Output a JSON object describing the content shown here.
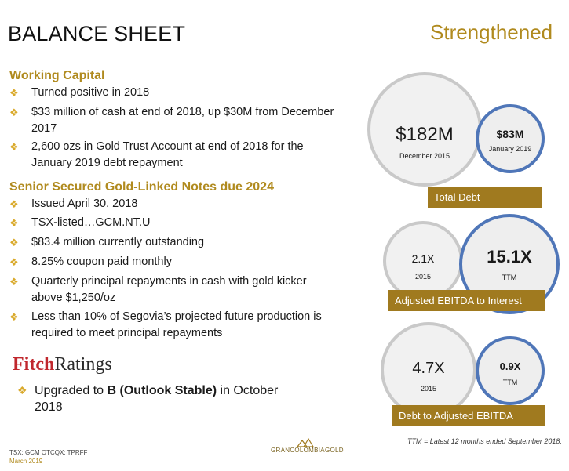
{
  "header": {
    "title": "BALANCE SHEET",
    "tagline": "Strengthened"
  },
  "working_capital": {
    "heading": "Working Capital",
    "bullets": [
      "Turned positive in 2018",
      "$33 million of cash at end of 2018, up $30M from December 2017",
      "2,600 ozs in Gold Trust Account at end of 2018 for the January 2019 debt repayment"
    ]
  },
  "notes": {
    "heading": "Senior Secured Gold-Linked Notes due 2024",
    "bullets": [
      "Issued April 30, 2018",
      "TSX-listed…GCM.NT.U",
      "$83.4 million currently outstanding",
      "8.25% coupon paid monthly",
      "Quarterly principal repayments in cash with gold kicker above $1,250/oz",
      "Less than 10% of Segovia’s projected future production is required to meet principal repayments"
    ]
  },
  "fitch": {
    "logo_part1": "Fitch",
    "logo_part2": "Ratings",
    "bullet_prefix": "Upgraded to ",
    "bullet_bold": "B (Outlook Stable)",
    "bullet_suffix": " in October 2018"
  },
  "metrics": {
    "total_debt": {
      "label": "Total Debt",
      "before_value": "$182M",
      "before_period": "December 2015",
      "after_value": "$83M",
      "after_period": "January 2019"
    },
    "ebitda_interest": {
      "label": "Adjusted EBITDA to Interest",
      "before_value": "2.1X",
      "before_period": "2015",
      "after_value": "15.1X",
      "after_period": "TTM"
    },
    "debt_ebitda": {
      "label": "Debt to Adjusted EBITDA",
      "before_value": "4.7X",
      "before_period": "2015",
      "after_value": "0.9X",
      "after_period": "TTM"
    }
  },
  "footnote": "TTM = Latest 12 months ended September 2018.",
  "footer": {
    "tickers": "TSX: GCM  OTCQX: TPRFF",
    "date": "March 2019",
    "logo_text": "GRANCOLOMBIAGOLD"
  },
  "colors": {
    "gold": "#b08a1e",
    "bar_gold": "#a07a1f",
    "ring_blue": "#4f76b8",
    "ring_gray": "#c9c9c9",
    "fitch_red": "#c0272d"
  }
}
